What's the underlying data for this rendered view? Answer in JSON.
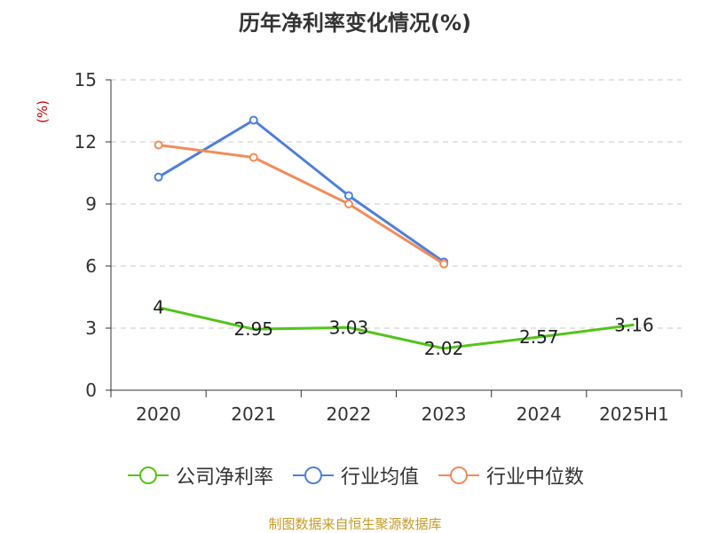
{
  "chart_data": {
    "type": "line",
    "title": "历年净利率变化情况(%)",
    "ylabel": "(%)",
    "categories": [
      "2020",
      "2021",
      "2022",
      "2023",
      "2024",
      "2025H1"
    ],
    "ylim": [
      0,
      15
    ],
    "yticks": [
      0,
      3,
      6,
      9,
      12,
      15
    ],
    "grid": true,
    "legend_position": "bottom",
    "series": [
      {
        "name": "公司净利率",
        "color": "#52c41a",
        "values": [
          4,
          2.95,
          3.03,
          2.02,
          2.57,
          3.16
        ],
        "labels": [
          "4",
          "2.95",
          "3.03",
          "2.02",
          "2.57",
          "3.16"
        ],
        "show_labels": true,
        "show_markers": false
      },
      {
        "name": "行业均值",
        "color": "#4f7fd8",
        "values": [
          10.3,
          13.05,
          9.4,
          6.2,
          null,
          null
        ],
        "show_labels": false,
        "show_markers": true
      },
      {
        "name": "行业中位数",
        "color": "#f28c5a",
        "values": [
          11.85,
          11.25,
          9.0,
          6.1,
          null,
          null
        ],
        "show_labels": false,
        "show_markers": true
      }
    ]
  },
  "source": "制图数据来自恒生聚源数据库"
}
